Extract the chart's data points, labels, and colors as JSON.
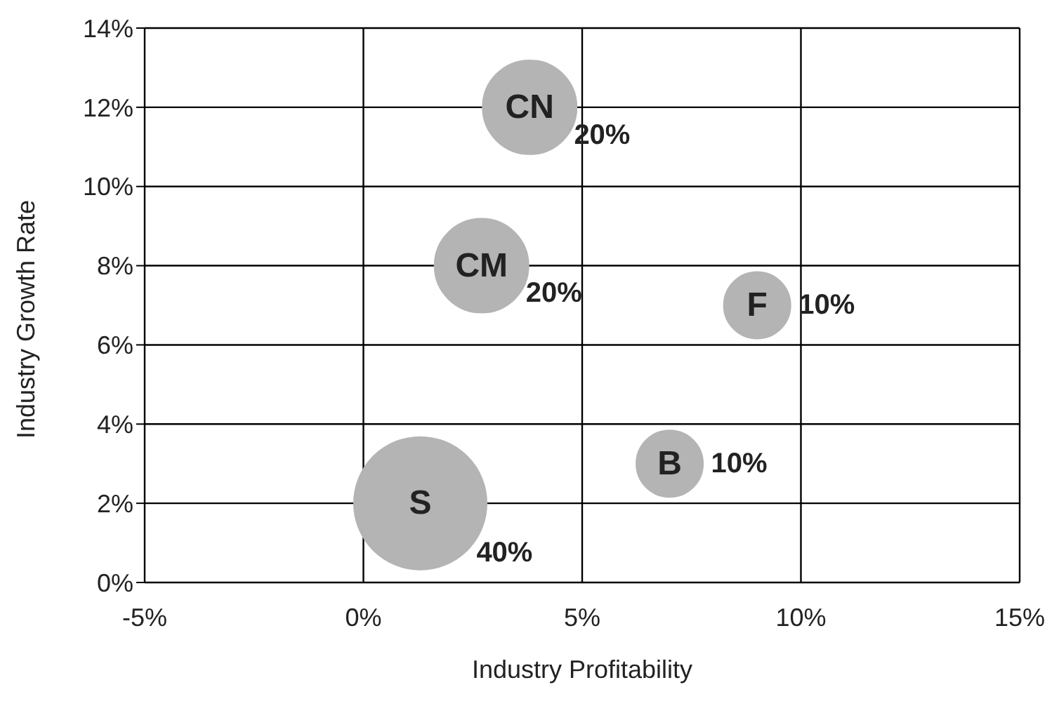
{
  "chart_data": {
    "type": "bubble",
    "xlabel": "Industry Profitability",
    "ylabel": "Industry Growth Rate",
    "xlim": [
      -5,
      15
    ],
    "xticks": [
      {
        "value": -5,
        "label": "-5%"
      },
      {
        "value": 0,
        "label": "0%"
      },
      {
        "value": 5,
        "label": "5%"
      },
      {
        "value": 10,
        "label": "10%"
      },
      {
        "value": 15,
        "label": "15%"
      }
    ],
    "ylim": [
      0,
      14
    ],
    "yticks": [
      {
        "value": 0,
        "label": "0%"
      },
      {
        "value": 2,
        "label": "2%"
      },
      {
        "value": 4,
        "label": "4%"
      },
      {
        "value": 6,
        "label": "6%"
      },
      {
        "value": 8,
        "label": "8%"
      },
      {
        "value": 10,
        "label": "10%"
      },
      {
        "value": 12,
        "label": "12%"
      },
      {
        "value": 14,
        "label": "14%"
      }
    ],
    "grid": true,
    "legend": false,
    "series": [
      {
        "name": "CN",
        "color": "#b4b4b4",
        "x": [
          3.8
        ],
        "values": [
          12
        ],
        "sizes": [
          0.5
        ]
      },
      {
        "name": "CM",
        "color": "#b4b4b4",
        "x": [
          2.7
        ],
        "values": [
          8
        ],
        "sizes": [
          0.5
        ]
      },
      {
        "name": "F",
        "color": "#b4b4b4",
        "x": [
          9
        ],
        "values": [
          7
        ],
        "sizes": [
          0.25
        ]
      },
      {
        "name": "B",
        "color": "#b4b4b4",
        "x": [
          7
        ],
        "values": [
          3
        ],
        "sizes": [
          0.25
        ]
      },
      {
        "name": "S",
        "color": "#b4b4b4",
        "x": [
          1.3
        ],
        "values": [
          2
        ],
        "sizes": [
          1
        ]
      }
    ],
    "annotations": [
      {
        "text": "20%",
        "x": 3.8,
        "y": 12
      },
      {
        "text": "20%",
        "x": 2.7,
        "y": 8
      },
      {
        "text": "10%",
        "x": 9,
        "y": 7
      },
      {
        "text": "10%",
        "x": 7,
        "y": 3
      },
      {
        "text": "40%",
        "x": 1.3,
        "y": 2
      }
    ]
  }
}
